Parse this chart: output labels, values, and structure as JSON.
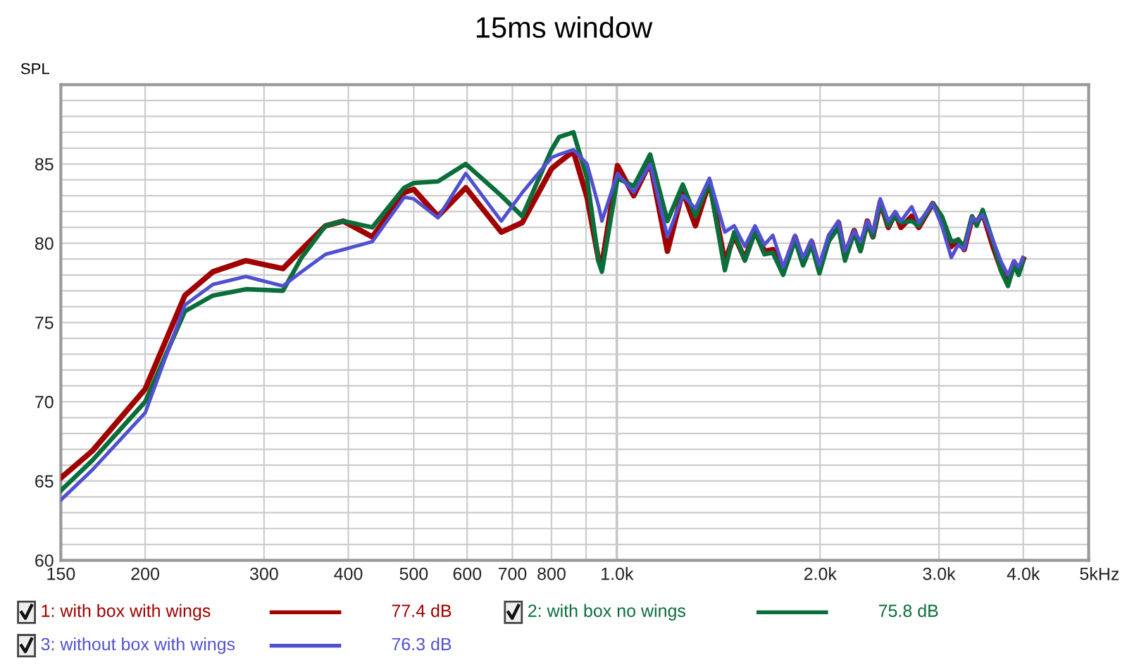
{
  "chart_data": {
    "type": "line",
    "title": "15ms window",
    "ylabel": "SPL",
    "x": [
      150,
      167,
      200,
      229,
      252,
      282,
      320,
      341,
      370,
      393,
      434,
      484,
      500,
      543,
      597,
      674,
      724,
      800,
      821,
      862,
      903,
      940,
      950,
      1002,
      1059,
      1120,
      1188,
      1252,
      1307,
      1371,
      1445,
      1492,
      1547,
      1602,
      1654,
      1702,
      1763,
      1836,
      1887,
      1942,
      1995,
      2058,
      2129,
      2177,
      2247,
      2295,
      2350,
      2395,
      2456,
      2524,
      2585,
      2635,
      2734,
      2800,
      2937,
      3030,
      3129,
      3203,
      3270,
      3359,
      3413,
      3483,
      3607,
      3712,
      3796,
      3876,
      3938,
      4000
    ],
    "series": [
      {
        "name": "1: with box with wings",
        "color": "#a00000",
        "values": [
          65.2,
          66.9,
          70.8,
          76.7,
          78.2,
          78.9,
          78.4,
          79.6,
          81.1,
          81.4,
          80.4,
          83.2,
          83.4,
          81.7,
          83.5,
          80.7,
          81.3,
          84.7,
          85.1,
          85.8,
          82.9,
          78.9,
          78.6,
          84.9,
          83.0,
          85.1,
          79.5,
          83.3,
          81.1,
          83.9,
          78.8,
          80.5,
          79.0,
          80.8,
          79.5,
          79.6,
          78.2,
          80.4,
          78.8,
          80.1,
          78.4,
          80.2,
          81.3,
          79.2,
          80.8,
          79.6,
          81.4,
          80.4,
          82.6,
          81.0,
          81.9,
          81.0,
          81.7,
          81.0,
          82.5,
          81.6,
          79.8,
          80.2,
          79.6,
          81.6,
          81.3,
          81.9,
          79.8,
          78.3,
          77.7,
          78.8,
          78.2,
          79.0
        ]
      },
      {
        "name": "2: with box no wings",
        "color": "#0a6e3a",
        "values": [
          64.4,
          66.3,
          70.0,
          75.7,
          76.7,
          77.1,
          77.0,
          79.1,
          81.1,
          81.4,
          81.0,
          83.5,
          83.8,
          83.9,
          85.0,
          83.0,
          81.7,
          85.9,
          86.7,
          87.0,
          84.1,
          78.8,
          78.2,
          84.1,
          83.6,
          85.6,
          81.4,
          83.7,
          81.7,
          83.9,
          78.3,
          80.7,
          78.9,
          80.7,
          79.3,
          79.4,
          78.0,
          80.2,
          78.6,
          79.9,
          78.1,
          80.1,
          81.0,
          78.9,
          80.7,
          79.5,
          81.3,
          80.4,
          82.6,
          81.1,
          81.7,
          81.3,
          81.4,
          81.1,
          82.5,
          81.7,
          80.1,
          80.2,
          79.8,
          81.7,
          81.1,
          82.1,
          80.1,
          78.2,
          77.3,
          78.6,
          78.0,
          78.9
        ]
      },
      {
        "name": "3: without box with wings",
        "color": "#5050d0",
        "values": [
          63.8,
          65.7,
          69.3,
          76.1,
          77.4,
          77.9,
          77.3,
          78.2,
          79.3,
          79.6,
          80.1,
          82.9,
          82.8,
          81.6,
          84.4,
          81.4,
          83.2,
          85.4,
          85.6,
          85.9,
          85.0,
          82.3,
          81.4,
          84.4,
          83.2,
          85.0,
          80.4,
          83.0,
          82.2,
          84.1,
          80.7,
          81.1,
          79.8,
          81.1,
          79.9,
          80.5,
          78.5,
          80.5,
          79.1,
          80.2,
          78.6,
          80.5,
          81.4,
          79.5,
          80.8,
          80.1,
          81.4,
          80.7,
          82.8,
          81.4,
          82.0,
          81.4,
          82.3,
          81.3,
          82.5,
          81.1,
          79.1,
          79.9,
          79.6,
          81.6,
          81.4,
          81.8,
          80.2,
          78.8,
          78.0,
          78.9,
          78.5,
          79.1
        ]
      }
    ],
    "annotations": [
      "77.4 dB",
      "75.8 dB",
      "76.3 dB"
    ],
    "log": "x",
    "xlim": [
      150,
      5000
    ],
    "xticks": [
      150,
      200,
      300,
      400,
      500,
      600,
      700,
      800,
      {
        "value": 900,
        "label": null
      },
      {
        "value": 1000,
        "label": "1.0k"
      },
      {
        "value": 2000,
        "label": "2.0k"
      },
      {
        "value": 3000,
        "label": "3.0k"
      },
      {
        "value": 4000,
        "label": "4.0k"
      },
      {
        "value": 5000,
        "label": "5k"
      }
    ],
    "xlabel": "Hz",
    "ylim": [
      60,
      90
    ],
    "yticks": [
      60,
      {
        "value": 61,
        "label": null
      },
      {
        "value": 62,
        "label": null
      },
      {
        "value": 63,
        "label": null
      },
      {
        "value": 64,
        "label": null
      },
      65,
      {
        "value": 66,
        "label": null
      },
      {
        "value": 67,
        "label": null
      },
      {
        "value": 68,
        "label": null
      },
      {
        "value": 69,
        "label": null
      },
      70,
      {
        "value": 71,
        "label": null
      },
      {
        "value": 72,
        "label": null
      },
      {
        "value": 73,
        "label": null
      },
      {
        "value": 74,
        "label": null
      },
      75,
      {
        "value": 76,
        "label": null
      },
      {
        "value": 77,
        "label": null
      },
      {
        "value": 78,
        "label": null
      },
      {
        "value": 79,
        "label": null
      },
      80,
      {
        "value": 81,
        "label": null
      },
      {
        "value": 82,
        "label": null
      },
      {
        "value": 83,
        "label": null
      },
      {
        "value": 84,
        "label": null
      },
      85,
      {
        "value": 86,
        "label": null
      },
      {
        "value": 87,
        "label": null
      },
      {
        "value": 88,
        "label": null
      },
      {
        "value": 89,
        "label": null
      },
      {
        "value": 90,
        "label": null
      }
    ],
    "ref_lines": [
      {
        "axis": "x",
        "value": 1000,
        "color": "#808080"
      }
    ],
    "grid": true,
    "legend": "bottom",
    "line_style": "solid",
    "marker": "none"
  }
}
